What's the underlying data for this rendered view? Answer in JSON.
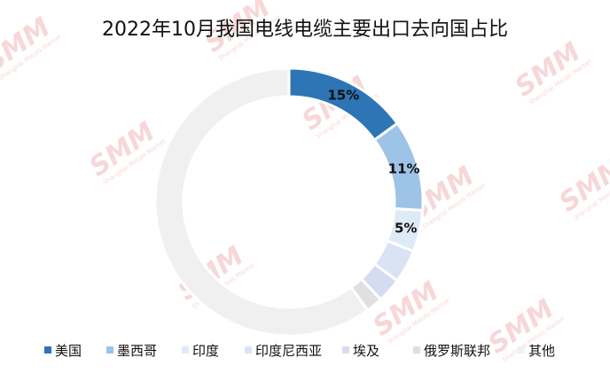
{
  "chart_data": {
    "type": "pie",
    "title": "2022年10月我国电线电缆主要出口去向国占比",
    "categories": [
      "美国",
      "墨西哥",
      "印度",
      "印度尼西亚",
      "埃及",
      "俄罗斯联邦",
      "其他"
    ],
    "values": [
      15,
      11,
      5,
      4,
      3,
      2,
      60
    ],
    "data_labels": [
      "15%",
      "11%",
      "5%",
      "",
      "",
      "",
      ""
    ],
    "colors": [
      "#2e75b6",
      "#9dc3e6",
      "#deebf7",
      "#dae3f3",
      "#d6dcf0",
      "#e0e0e0",
      "#f0f0f0"
    ],
    "donut": true,
    "legend_position": "bottom"
  },
  "watermark": {
    "brand": "SMM",
    "sub": "Shanghai Metals Market"
  }
}
